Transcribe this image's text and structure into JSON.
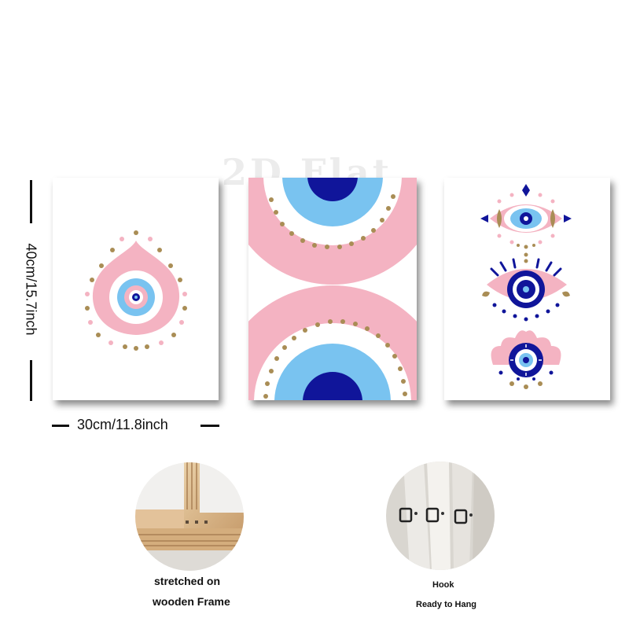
{
  "dimensions": {
    "height_label": "40cm/15.7inch",
    "width_label": "30cm/11.8inch"
  },
  "watermark": "2D Flat",
  "panels": [
    {
      "name": "teardrop-evil-eye-print"
    },
    {
      "name": "half-circles-evil-eye-print"
    },
    {
      "name": "stacked-evil-eyes-print"
    }
  ],
  "colors": {
    "pink": "#f4b3c2",
    "light_blue": "#79c3f0",
    "navy": "#10159a",
    "gold": "#a98d55",
    "white": "#ffffff"
  },
  "features": [
    {
      "image": "wooden-frame-corner-photo",
      "caption_line1": "stretched on",
      "caption_line2": "wooden Frame"
    },
    {
      "image": "hook-photo",
      "caption_line1": "Hook",
      "caption_line2": "Ready to Hang"
    }
  ]
}
